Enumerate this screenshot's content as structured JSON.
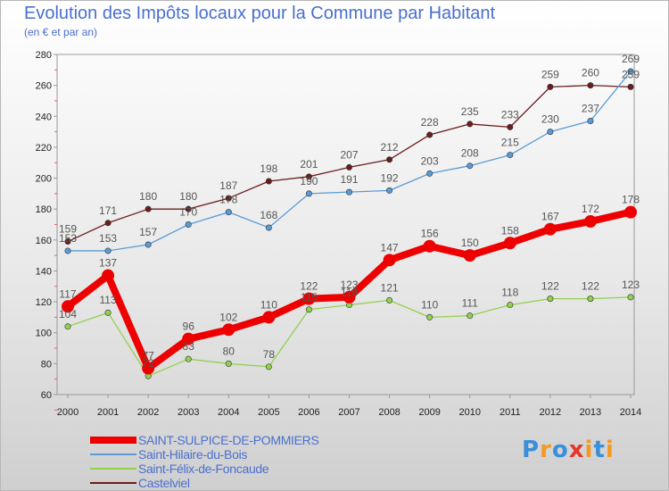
{
  "chart_data": {
    "type": "line",
    "title": "Evolution des Impôts locaux pour la Commune par Habitant",
    "subtitle": "(en € et par an)",
    "x": [
      "2000",
      "2001",
      "2002",
      "2003",
      "2004",
      "2005",
      "2006",
      "2007",
      "2008",
      "2009",
      "2010",
      "2011",
      "2012",
      "2013",
      "2014"
    ],
    "ylim": [
      60,
      280
    ],
    "yticks": [
      60,
      80,
      100,
      120,
      140,
      160,
      180,
      200,
      220,
      240,
      260,
      280
    ],
    "grid": false,
    "legend_position": "bottom-left",
    "series": [
      {
        "name": "SAINT-SULPICE-DE-POMMIERS",
        "color": "#ee0000",
        "values": [
          117,
          137,
          77,
          96,
          102,
          110,
          122,
          123,
          147,
          156,
          150,
          158,
          167,
          172,
          178
        ]
      },
      {
        "name": "Saint-Hilaire-du-Bois",
        "color": "#5b9bd5",
        "values": [
          153,
          153,
          157,
          170,
          178,
          168,
          190,
          191,
          192,
          203,
          208,
          215,
          230,
          237,
          269
        ]
      },
      {
        "name": "Saint-Félix-de-Foncaude",
        "color": "#92d050",
        "values": [
          104,
          113,
          72,
          83,
          80,
          78,
          115,
          118,
          121,
          110,
          111,
          118,
          122,
          122,
          123
        ]
      },
      {
        "name": "Castelviel",
        "color": "#6b1d1d",
        "values": [
          159,
          171,
          180,
          180,
          187,
          198,
          201,
          207,
          212,
          228,
          235,
          233,
          259,
          260,
          259
        ]
      }
    ]
  },
  "logo": {
    "letters": [
      "P",
      "r",
      "o",
      "x",
      "i",
      "t",
      "i"
    ],
    "colors": [
      "#3a8fd9",
      "#f39a21",
      "#3a8fd9",
      "#e8352a",
      "#f39a21",
      "#3a8fd9",
      "#f39a21"
    ]
  }
}
